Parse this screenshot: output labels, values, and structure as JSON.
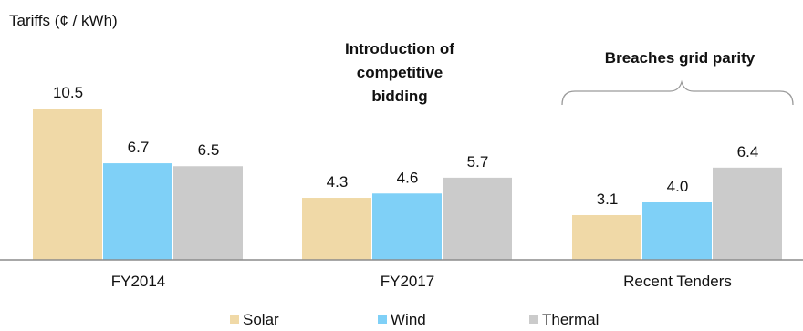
{
  "chart_data": {
    "type": "bar",
    "ylabel": "Tariffs (¢ / kWh)",
    "categories": [
      "FY2014",
      "FY2017",
      "Recent Tenders"
    ],
    "series": [
      {
        "name": "Solar",
        "values": [
          10.5,
          4.3,
          3.1
        ]
      },
      {
        "name": "Wind",
        "values": [
          6.7,
          4.6,
          4.0
        ]
      },
      {
        "name": "Thermal",
        "values": [
          6.5,
          5.7,
          6.4
        ]
      }
    ],
    "value_labels": [
      [
        "10.5",
        "4.3",
        "3.1"
      ],
      [
        "6.7",
        "4.6",
        "4.0"
      ],
      [
        "6.5",
        "5.7",
        "6.4"
      ]
    ],
    "ylim": [
      0,
      11
    ],
    "grid": false,
    "legend": "bottom",
    "annotations": [
      {
        "lines": [
          "Introduction of",
          "competitive",
          "bidding"
        ]
      },
      {
        "lines": [
          "Breaches grid parity"
        ]
      }
    ],
    "colors": [
      "#f0d9a7",
      "#7fd0f7",
      "#cbcbcb"
    ]
  }
}
